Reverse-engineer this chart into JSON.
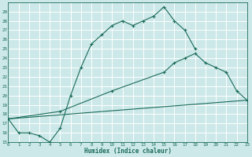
{
  "xlabel": "Humidex (Indice chaleur)",
  "ylabel": "",
  "bg_color": "#cce8e8",
  "line_color": "#1a6b5a",
  "grid_color": "#ffffff",
  "ylim": [
    15,
    30
  ],
  "xlim": [
    0,
    23
  ],
  "yticks": [
    15,
    16,
    17,
    18,
    19,
    20,
    21,
    22,
    23,
    24,
    25,
    26,
    27,
    28,
    29
  ],
  "xticks": [
    0,
    1,
    2,
    3,
    4,
    5,
    6,
    7,
    8,
    9,
    10,
    11,
    12,
    13,
    14,
    15,
    16,
    17,
    18,
    19,
    20,
    21,
    22,
    23
  ],
  "line1_x": [
    0,
    1,
    2,
    3,
    4,
    5,
    6,
    7,
    8,
    9,
    10,
    11,
    12,
    13,
    14,
    15,
    16,
    17,
    18
  ],
  "line1_y": [
    17.5,
    16.0,
    16.0,
    15.7,
    15.0,
    16.5,
    20.0,
    23.0,
    25.5,
    26.5,
    27.5,
    28.0,
    27.5,
    28.0,
    28.5,
    29.5,
    28.0,
    27.0,
    25.0
  ],
  "line2_x": [
    0,
    5,
    10,
    15,
    16,
    17,
    18,
    19,
    20,
    21,
    22,
    23
  ],
  "line2_y": [
    17.5,
    18.3,
    20.5,
    22.5,
    23.5,
    24.0,
    24.5,
    23.5,
    23.0,
    22.5,
    20.5,
    19.5
  ],
  "line3_x": [
    0,
    23
  ],
  "line3_y": [
    17.5,
    19.5
  ]
}
